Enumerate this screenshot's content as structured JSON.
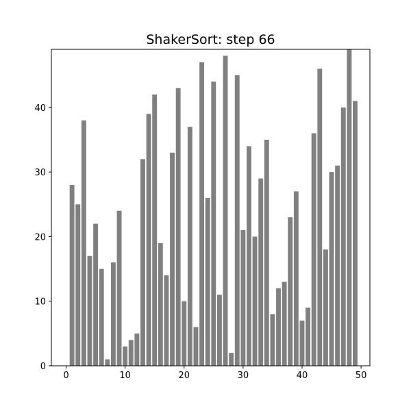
{
  "chart_data": {
    "type": "bar",
    "title": "ShakerSort: step 66",
    "xlabel": "",
    "ylabel": "",
    "x": [
      0,
      1,
      2,
      3,
      4,
      5,
      6,
      7,
      8,
      9,
      10,
      11,
      12,
      13,
      14,
      15,
      16,
      17,
      18,
      19,
      20,
      21,
      22,
      23,
      24,
      25,
      26,
      27,
      28,
      29,
      30,
      31,
      32,
      33,
      34,
      35,
      36,
      37,
      38,
      39,
      40,
      41,
      42,
      43,
      44,
      45,
      46,
      47,
      48,
      49
    ],
    "values": [
      0,
      28,
      25,
      38,
      17,
      22,
      15,
      1,
      16,
      24,
      3,
      4,
      5,
      32,
      39,
      42,
      19,
      14,
      33,
      43,
      10,
      37,
      6,
      47,
      26,
      44,
      11,
      48,
      2,
      45,
      21,
      34,
      20,
      29,
      35,
      8,
      12,
      13,
      23,
      27,
      7,
      9,
      36,
      46,
      18,
      30,
      31,
      40,
      49,
      41
    ],
    "xlim": [
      -2.5,
      51.5
    ],
    "ylim": [
      0,
      49
    ],
    "xticks": [
      0,
      10,
      20,
      30,
      40,
      50
    ],
    "yticks": [
      0,
      10,
      20,
      30,
      40
    ],
    "bar_color": "#808080",
    "grid": false,
    "legend": "none"
  }
}
